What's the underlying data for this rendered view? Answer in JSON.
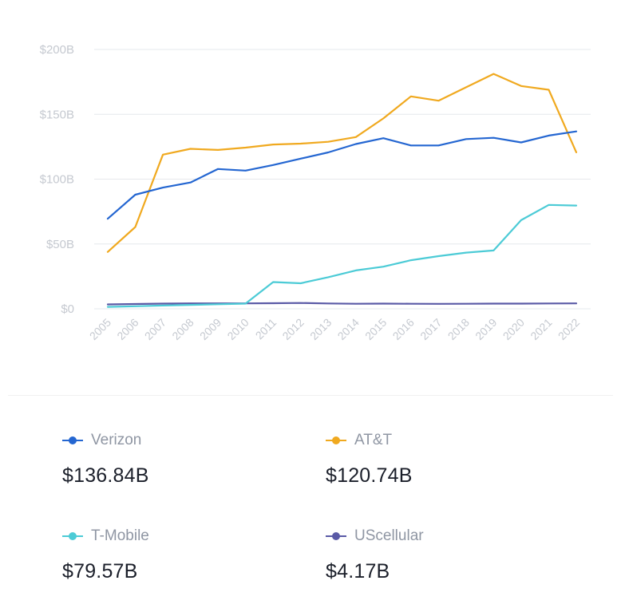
{
  "chart_data": {
    "type": "line",
    "title": "",
    "xlabel": "",
    "ylabel": "",
    "x": [
      "2005",
      "2006",
      "2007",
      "2008",
      "2009",
      "2010",
      "2011",
      "2012",
      "2013",
      "2014",
      "2015",
      "2016",
      "2017",
      "2018",
      "2019",
      "2020",
      "2021",
      "2022"
    ],
    "y_ticks": [
      "$0",
      "$50B",
      "$100B",
      "$150B",
      "$200B"
    ],
    "y_tick_values": [
      0,
      50,
      100,
      150,
      200
    ],
    "ylim": [
      0,
      200
    ],
    "grid": true,
    "legend_position": "bottom",
    "series": [
      {
        "name": "Verizon",
        "color": "#2466d1",
        "values": [
          69.5,
          88,
          93.5,
          97.4,
          107.8,
          106.6,
          110.9,
          115.8,
          120.6,
          127.1,
          131.6,
          126,
          126,
          130.9,
          131.9,
          128.3,
          133.6,
          136.8
        ]
      },
      {
        "name": "AT&T",
        "color": "#f0a91f",
        "values": [
          43.9,
          63.1,
          118.9,
          123.4,
          122.5,
          124.3,
          126.7,
          127.4,
          128.8,
          132.4,
          146.8,
          163.8,
          160.5,
          170.8,
          181.2,
          171.8,
          168.9,
          120.7
        ]
      },
      {
        "name": "T-Mobile",
        "color": "#4ccbd6",
        "values": [
          1.5,
          2,
          2.5,
          3,
          3.5,
          4,
          20.6,
          19.7,
          24.4,
          29.6,
          32.5,
          37.5,
          40.6,
          43.3,
          45,
          68.4,
          80.1,
          79.6
        ]
      },
      {
        "name": "UScellular",
        "color": "#5a5aa6",
        "values": [
          3.4,
          3.7,
          4,
          4.2,
          4.2,
          4.2,
          4.3,
          4.5,
          4.1,
          3.9,
          4,
          3.9,
          3.8,
          3.9,
          4,
          4,
          4.1,
          4.2
        ]
      }
    ]
  },
  "legend": [
    {
      "name": "Verizon",
      "value": "$136.84B",
      "color": "#2466d1"
    },
    {
      "name": "AT&T",
      "value": "$120.74B",
      "color": "#f0a91f"
    },
    {
      "name": "T-Mobile",
      "value": "$79.57B",
      "color": "#4ccbd6"
    },
    {
      "name": "UScellular",
      "value": "$4.17B",
      "color": "#5a5aa6"
    }
  ]
}
